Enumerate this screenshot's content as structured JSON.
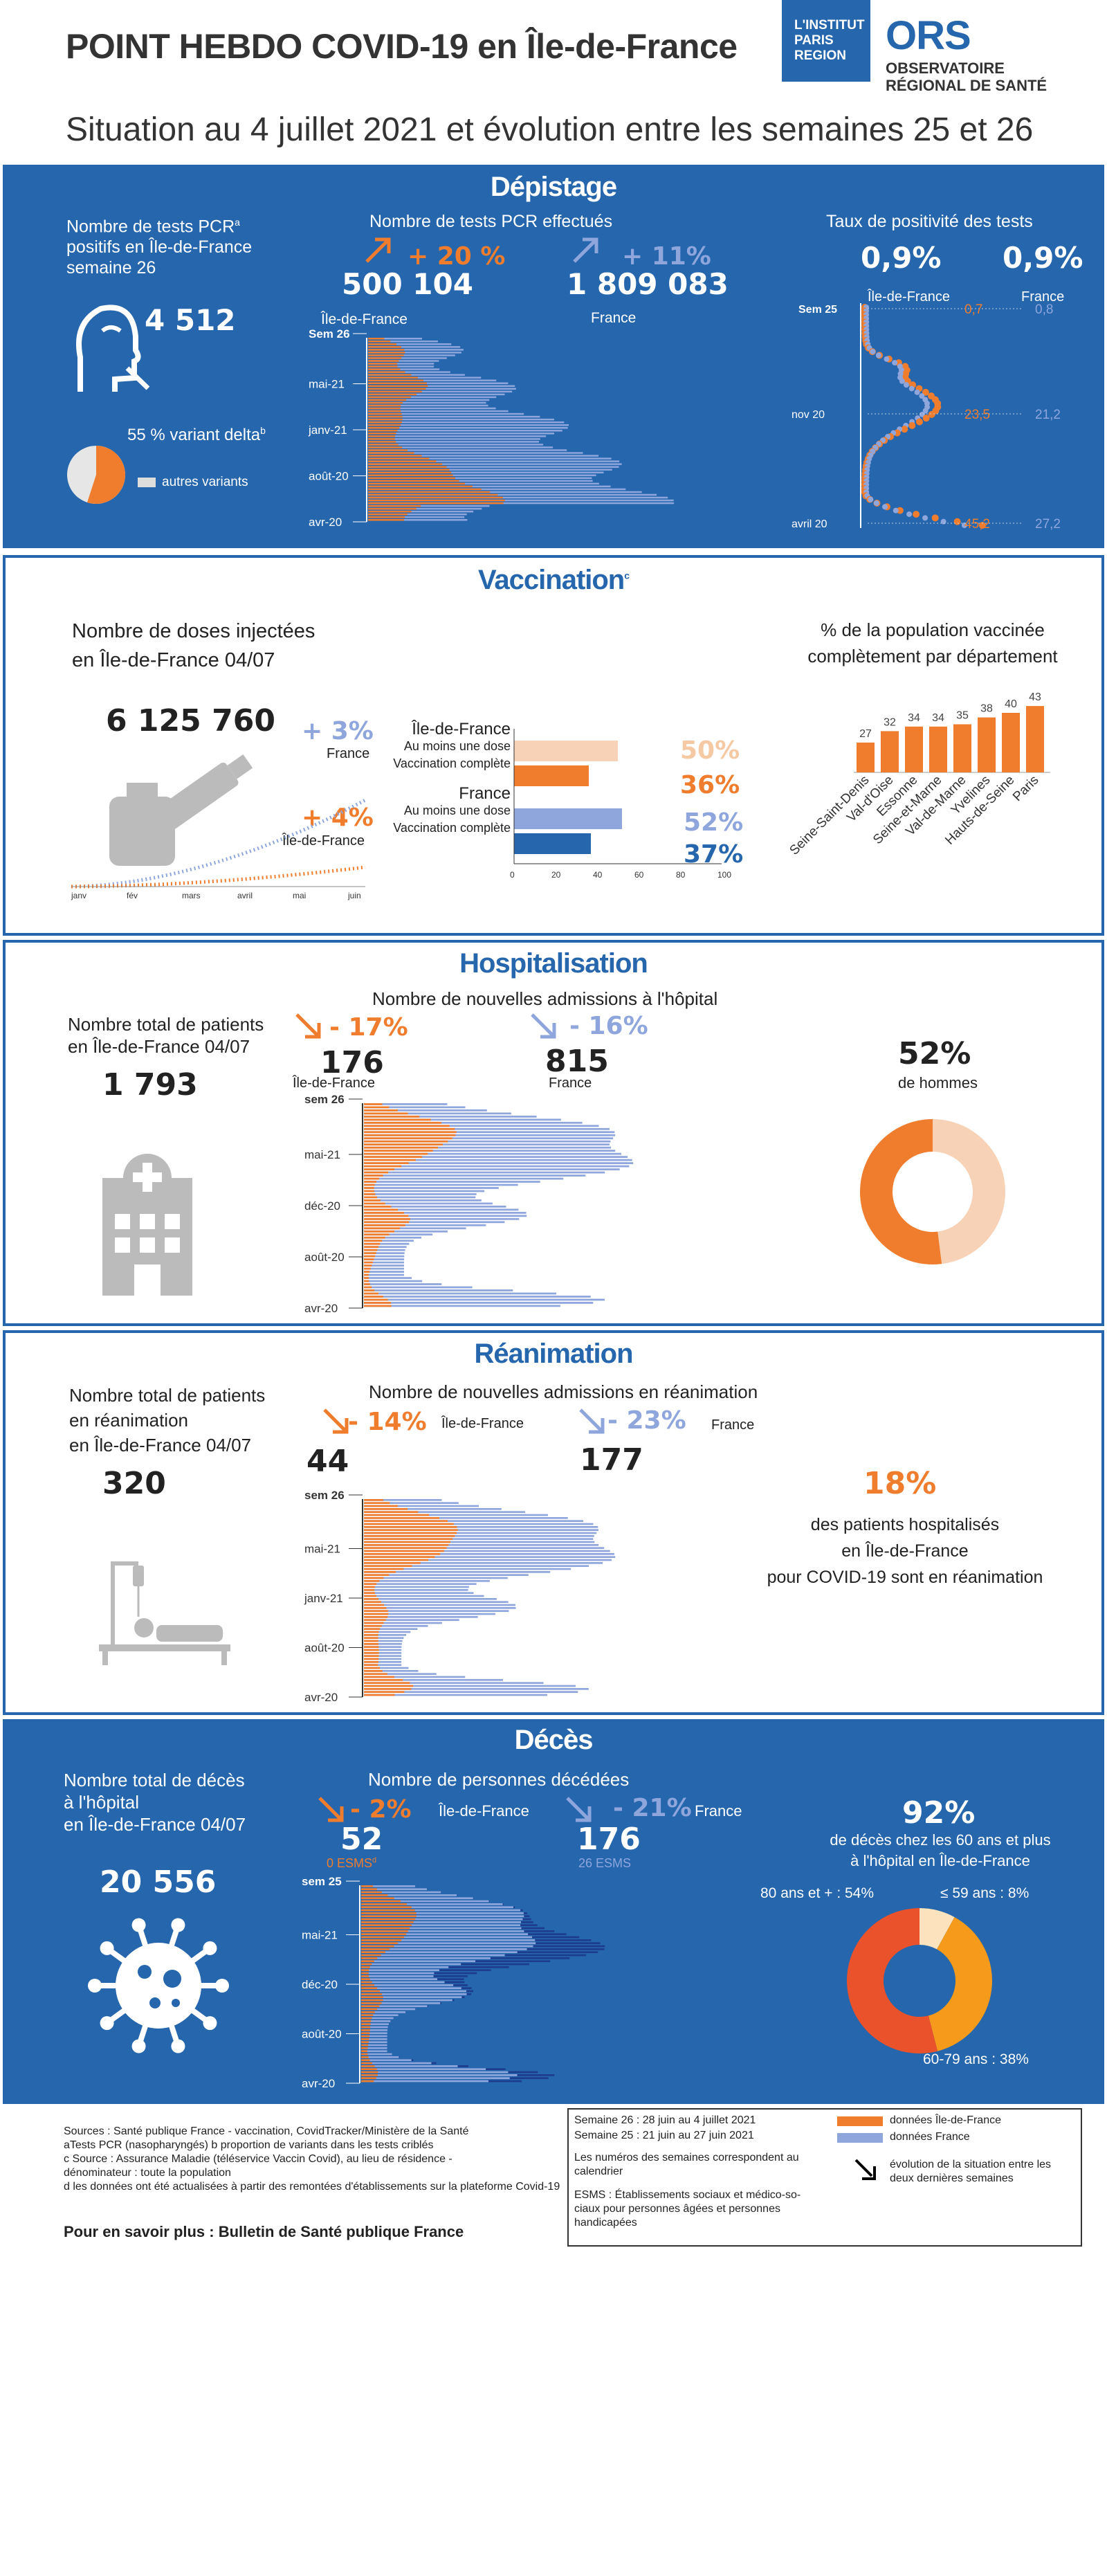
{
  "header": {
    "title": "POINT HEBDO COVID-19 en Île-de-France",
    "subtitle": "Situation au 4 juillet 2021 et évolution entre les semaines 25 et 26",
    "logo_ip": [
      "L'INSTITUT",
      "PARIS",
      "REGION"
    ],
    "logo_ors": "ORS",
    "logo_ors_sub": [
      "OBSERVATOIRE",
      "RÉGIONAL DE SANTÉ"
    ]
  },
  "colors": {
    "blue": "#2566ad",
    "orange": "#ef7d2d",
    "light_blue": "#8fa6dd",
    "dark_blue": "#1d3c8c"
  },
  "depistage": {
    "title": "Dépistage",
    "positive_label": "Nombre de tests PCRa positifs en Île-de-France semaine 26",
    "positive_label_lines": [
      "Nombre de tests PCR",
      "positifs en Île-de-France",
      "semaine 26"
    ],
    "positive_value": "4 512",
    "delta_label": "55 % variant delta",
    "other_variants": "autres variants",
    "tests_label": "Nombre de tests PCR effectués",
    "idf_change": "+ 20 %",
    "idf_value": "500 104",
    "fr_change": "+ 11%",
    "fr_value": "1 809 083",
    "idf_label": "Île-de-France",
    "fr_label": "France",
    "positivity_label": "Taux de positivité des tests",
    "pos_idf": "0,9%",
    "pos_fr": "0,9%",
    "pos_ticks": [
      "Sem  25",
      "nov 20",
      "avril 20"
    ]
  },
  "vaccination": {
    "title": "Vaccination",
    "doses_label": [
      "Nombre de doses injectées",
      "en Île-de-France 04/07"
    ],
    "doses_value": "6 125 760",
    "fr_change": "+ 3%",
    "fr_label": "France",
    "idf_change": "+ 4%",
    "idf_label": "Île-de-France",
    "months": [
      "janv",
      "fév",
      "mars",
      "avril",
      "mai",
      "juin"
    ],
    "bar_labels": {
      "idf": "Île-de-France",
      "fr": "France",
      "one": "Au moins une dose",
      "full": "Vaccination complète"
    },
    "pcts": [
      "50%",
      "36%",
      "52%",
      "37%"
    ],
    "dept_label": [
      "% de la population vaccinée",
      "complètement par département"
    ]
  },
  "hospitalisation": {
    "title": "Hospitalisation",
    "total_label": [
      "Nombre total de patients",
      "en Île-de-France 04/07"
    ],
    "total_value": "1 793",
    "admissions_label": "Nombre de nouvelles admissions à l'hôpital",
    "idf_change": "- 17%",
    "fr_change": "- 16%",
    "idf_value": "176",
    "fr_value": "815",
    "idf_label": "Île-de-France",
    "fr_label": "France",
    "men_pct": "52%",
    "men_label": "de hommes"
  },
  "reanimation": {
    "title": "Réanimation",
    "total_label": [
      "Nombre total de patients",
      "en réanimation",
      "en Île-de-France 04/07"
    ],
    "total_value": "320",
    "admissions_label": "Nombre de nouvelles admissions en réanimation",
    "idf_change": "- 14%",
    "fr_change": "- 23%",
    "idf_value": "44",
    "fr_value": "177",
    "idf_label": "Île-de-France",
    "fr_label": "France",
    "share_pct": "18%",
    "share_label": [
      "des patients hospitalisés",
      "en Île-de-France",
      "pour COVID-19 sont en réanimation"
    ]
  },
  "deces": {
    "title": "Décès",
    "total_label": [
      "Nombre total de décès",
      "à l'hôpital",
      "en Île-de-France 04/07"
    ],
    "total_value": "20 556",
    "persons_label": "Nombre de personnes décédées",
    "idf_change": "- 2%",
    "fr_change": "- 21%",
    "idf_value": "52",
    "fr_value": "176",
    "idf_esms": "0 ESMS",
    "fr_esms": "26 ESMS",
    "idf_label": "Île-de-France",
    "fr_label": "France",
    "age_pct": "92%",
    "age_label": [
      "de décès chez les 60 ans et plus",
      "à l'hôpital en Île-de-France"
    ],
    "age_80": "80 ans et + : 54%",
    "age_59": "≤ 59 ans : 8%",
    "age_6079": "60-79 ans : 38%"
  },
  "footer": {
    "sources": [
      "Sources : Santé publique France - vaccination, CovidTracker/Ministère de la Santé",
      "aTests PCR (nasopharyngés) b proportion de variants dans les tests criblés",
      "c Source : Assurance Maladie (téléservice Vaccin Covid), au lieu de résidence -",
      "dénominateur : toute la population",
      "d les données ont été actualisées à partir des remontées d'établissements sur la plateforme Covid-19"
    ],
    "more": "Pour en savoir plus : Bulletin de Santé publique France",
    "sem26": "Semaine 26 :  28 juin au 4 juillet 2021",
    "sem25": "Semaine 25 :  21 juin au 27 juin 2021",
    "weeks_note": [
      "Les numéros des semaines correspondent au",
      "calendrier"
    ],
    "esms_note": [
      "ESMS : Établissements sociaux et  médico-so-",
      "ciaux pour personnes âgées et personnes",
      "handicapées"
    ],
    "legend_idf": "données Île-de-France",
    "legend_fr": "données France",
    "legend_arrow": [
      "évolution de la situation entre les",
      "deux dernières semaines"
    ]
  },
  "chart_data": [
    {
      "id": "positivity",
      "type": "scatter",
      "title": "Taux de positivité des tests",
      "series": [
        {
          "name": "Île-de-France",
          "values": [
            0.7,
            23.5,
            45.2
          ]
        },
        {
          "name": "France",
          "values": [
            0.8,
            21.2,
            27.2
          ]
        }
      ],
      "tick_labels": [
        "Sem  25",
        "nov 20",
        "avril 20"
      ]
    },
    {
      "id": "vacc_bars",
      "type": "bar",
      "categories": [
        "Île-de-France - Au moins une dose",
        "Île-de-France - Vaccination complète",
        "France - Au moins une dose",
        "France - Vaccination complète"
      ],
      "values": [
        50,
        36,
        52,
        37
      ],
      "xlim": [
        0,
        100
      ],
      "ticks": [
        0,
        20,
        40,
        60,
        80,
        100
      ]
    },
    {
      "id": "dept",
      "type": "bar",
      "title": "% de la population vaccinée complètement par département",
      "categories": [
        "Seine-Saint-Denis",
        "Val-d'Oise",
        "Essonne",
        "Seine-et-Marne",
        "Val-de-Marne",
        "Yvelines",
        "Hauts-de-Seine",
        "Paris"
      ],
      "values": [
        27,
        32,
        34,
        34,
        35,
        38,
        40,
        43
      ]
    },
    {
      "id": "hosp_donut",
      "type": "pie",
      "categories": [
        "hommes",
        "femmes"
      ],
      "values": [
        52,
        48
      ]
    },
    {
      "id": "deces_donut",
      "type": "pie",
      "categories": [
        "80 ans et +",
        "60-79 ans",
        "≤ 59 ans"
      ],
      "values": [
        54,
        38,
        8
      ]
    }
  ],
  "timeline_ticks": {
    "depistage": [
      "Sem  26",
      "mai-21",
      "janv-21",
      "août-20",
      "avr-20"
    ],
    "hospitalisation": [
      "sem 26",
      "mai-21",
      "déc-20",
      "août-20",
      "avr-20"
    ],
    "reanimation": [
      "sem 26",
      "mai-21",
      "janv-21",
      "août-20",
      "avr-20"
    ],
    "deces": [
      "sem 25",
      "mai-21",
      "déc-20",
      "août-20",
      "avr-20"
    ]
  }
}
